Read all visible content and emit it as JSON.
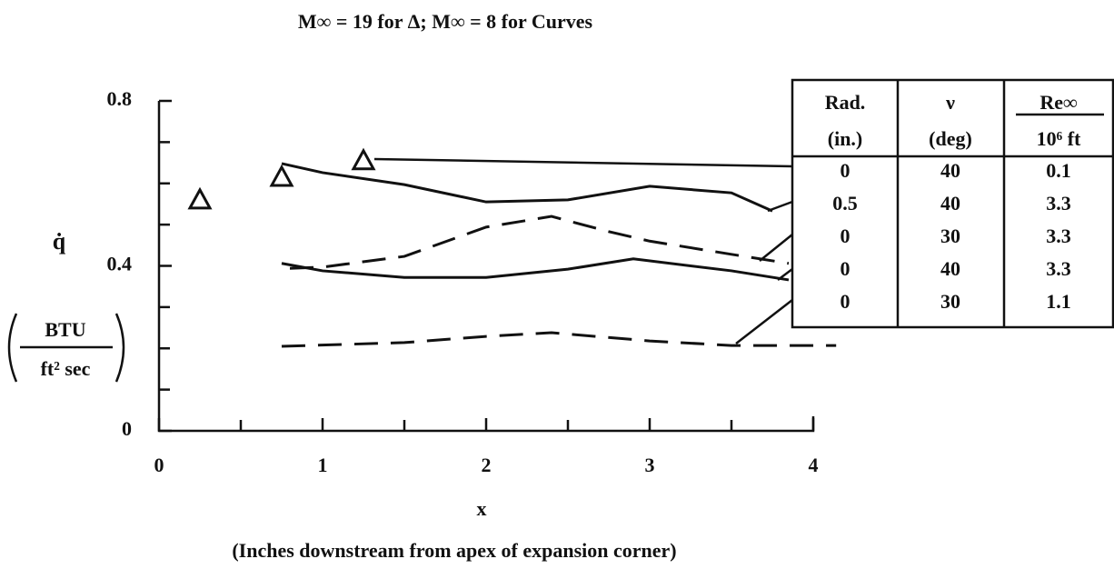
{
  "chart_data": {
    "type": "line",
    "title": "M∞ = 19 for Δ; M∞ = 8 for Curves",
    "ylabel": "q̇",
    "yunits_numerator": "BTU",
    "yunits_denominator": "ft² sec",
    "xlabel": "x",
    "xlabel_note": "(Inches downstream from apex of expansion corner)",
    "xlim": [
      0,
      4
    ],
    "xticks": [
      0,
      1,
      2,
      3,
      4
    ],
    "xminorticks": [
      0.5,
      1.5,
      2.5,
      3.5
    ],
    "ylim": [
      0,
      0.8
    ],
    "yticks": [
      0,
      0.4,
      0.8
    ],
    "yminorticks": [
      0.1,
      0.2,
      0.3,
      0.5,
      0.6,
      0.7
    ],
    "color": "#111111",
    "series": [
      {
        "style": "solid",
        "x": [
          0.75,
          1,
          1.5,
          2,
          2.5,
          3,
          3.5,
          3.75
        ],
        "values": [
          0.648,
          0.626,
          0.597,
          0.555,
          0.56,
          0.593,
          0.577,
          0.533
        ]
      },
      {
        "style": "dashed",
        "x": [
          0.8,
          1,
          1.5,
          2,
          2.4,
          2.75,
          3,
          3.5,
          3.85
        ],
        "values": [
          0.394,
          0.397,
          0.423,
          0.494,
          0.52,
          0.483,
          0.46,
          0.428,
          0.406
        ]
      },
      {
        "style": "solid",
        "x": [
          0.75,
          1,
          1.5,
          2,
          2.5,
          2.9,
          3.5,
          3.85
        ],
        "values": [
          0.406,
          0.388,
          0.372,
          0.372,
          0.392,
          0.417,
          0.388,
          0.366
        ]
      },
      {
        "style": "dashed",
        "x": [
          0.75,
          1.5,
          2,
          2.4,
          3,
          3.5,
          4.14
        ],
        "values": [
          0.205,
          0.214,
          0.229,
          0.238,
          0.218,
          0.207,
          0.207
        ]
      }
    ],
    "triangles": {
      "x": [
        0.25,
        0.75,
        1.25
      ],
      "values": [
        0.56,
        0.615,
        0.655
      ]
    },
    "legend_table": {
      "header": [
        [
          "Rad.",
          "(in.)"
        ],
        [
          "ν",
          "(deg)"
        ],
        [
          "Re∞",
          "10⁶ ft"
        ]
      ],
      "rows": [
        [
          0,
          40,
          0.1
        ],
        [
          0.5,
          40,
          3.3
        ],
        [
          0,
          30,
          3.3
        ],
        [
          0,
          40,
          3.3
        ],
        [
          0,
          30,
          1.1
        ]
      ]
    }
  }
}
